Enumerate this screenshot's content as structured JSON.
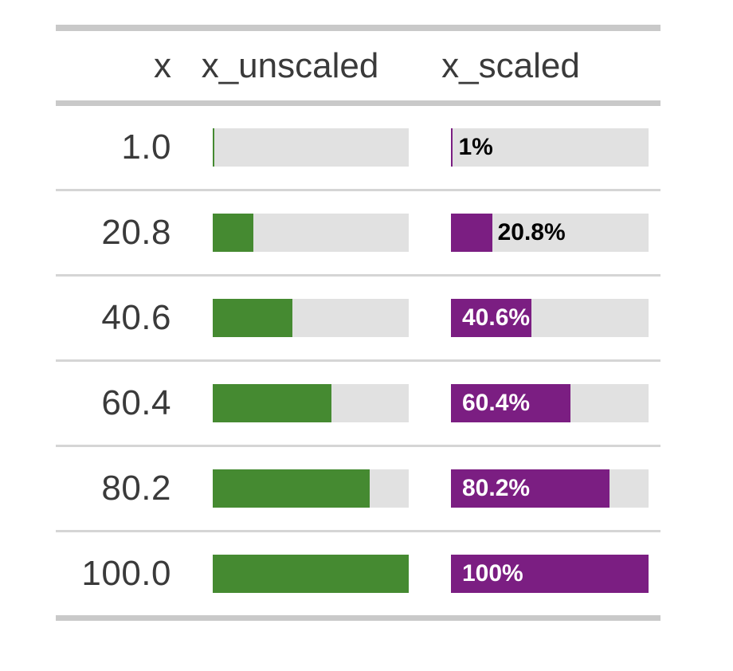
{
  "table": {
    "columns": [
      {
        "label": "x"
      },
      {
        "label": "x_unscaled"
      },
      {
        "label": "x_scaled"
      }
    ],
    "rows": [
      {
        "x": "1.0",
        "unscaled_pct": 1,
        "scaled_pct": 1,
        "scaled_label": "1%",
        "label_inside": false
      },
      {
        "x": "20.8",
        "unscaled_pct": 20.8,
        "scaled_pct": 20.8,
        "scaled_label": "20.8%",
        "label_inside": false
      },
      {
        "x": "40.6",
        "unscaled_pct": 40.6,
        "scaled_pct": 40.6,
        "scaled_label": "40.6%",
        "label_inside": true
      },
      {
        "x": "60.4",
        "unscaled_pct": 60.4,
        "scaled_pct": 60.4,
        "scaled_label": "60.4%",
        "label_inside": true
      },
      {
        "x": "80.2",
        "unscaled_pct": 80.2,
        "scaled_pct": 80.2,
        "scaled_label": "80.2%",
        "label_inside": true
      },
      {
        "x": "100.0",
        "unscaled_pct": 100,
        "scaled_pct": 100,
        "scaled_label": "100%",
        "label_inside": true
      }
    ],
    "colors": {
      "unscaled_fill": "#458A31",
      "scaled_fill": "#7B1E82",
      "track_background": "#E1E1E1",
      "border": "#C9C9C9",
      "separator": "#D5D5D5",
      "header_text": "#3A3A3A",
      "label_outside": "#000000",
      "label_inside": "#FFFFFF"
    }
  },
  "chart_data": {
    "type": "bar",
    "title": "",
    "columns": [
      "x",
      "x_unscaled",
      "x_scaled"
    ],
    "x": [
      1.0,
      20.8,
      40.6,
      60.4,
      80.2,
      100.0
    ],
    "series": [
      {
        "name": "x_unscaled",
        "values": [
          1,
          20.8,
          40.6,
          60.4,
          80.2,
          100
        ],
        "color": "#458A31",
        "labels": []
      },
      {
        "name": "x_scaled",
        "values": [
          1,
          20.8,
          40.6,
          60.4,
          80.2,
          100
        ],
        "color": "#7B1E82",
        "labels": [
          "1%",
          "20.8%",
          "40.6%",
          "60.4%",
          "80.2%",
          "100%"
        ]
      }
    ],
    "bar_range": [
      0,
      100
    ],
    "orientation": "horizontal",
    "layout": "table-embedded-bars"
  }
}
